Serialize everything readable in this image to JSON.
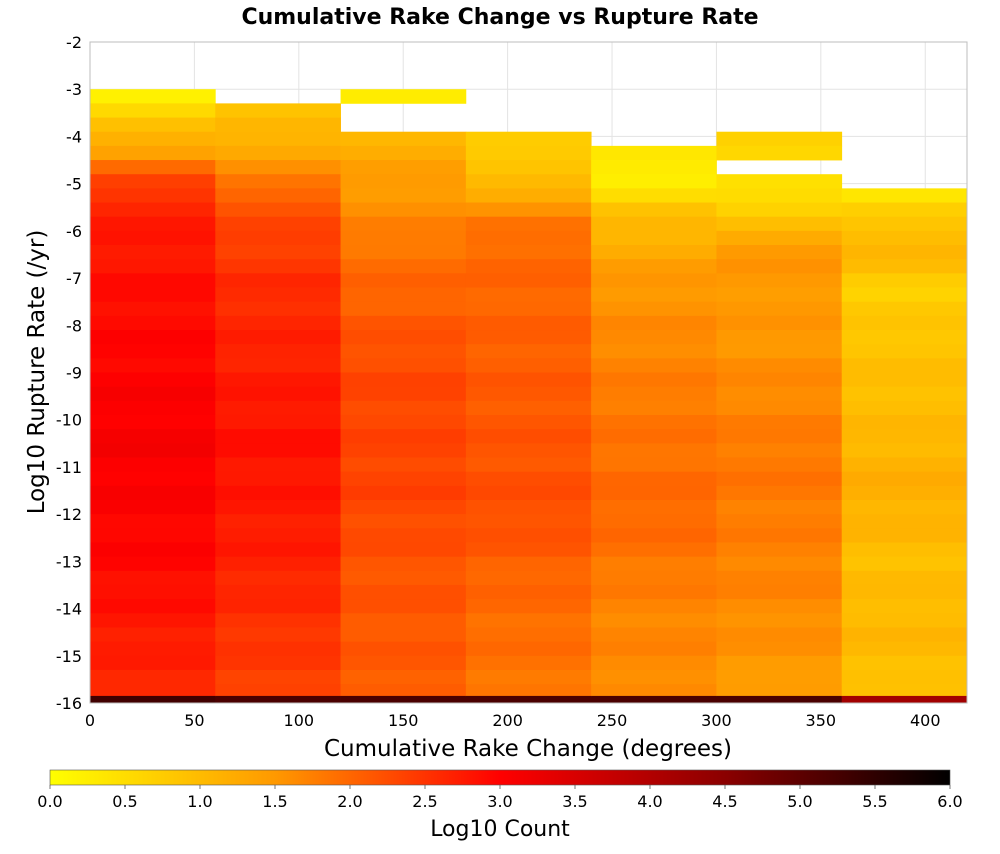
{
  "chart_data": {
    "type": "heatmap",
    "title": "Cumulative Rake Change vs Rupture Rate",
    "xlabel": "Cumulative Rake Change (degrees)",
    "ylabel": "Log10 Rupture Rate (/yr)",
    "xlim": [
      0,
      420
    ],
    "ylim": [
      -16,
      -2
    ],
    "x_ticks": [
      0,
      50,
      100,
      150,
      200,
      250,
      300,
      350,
      400
    ],
    "y_ticks": [
      -2,
      -3,
      -4,
      -5,
      -6,
      -7,
      -8,
      -9,
      -10,
      -11,
      -12,
      -13,
      -14,
      -15,
      -16
    ],
    "grid": true,
    "x_bin_width": 60,
    "y_bin_height": 0.3,
    "x_bin_starts": [
      0,
      60,
      120,
      180,
      240,
      300,
      360
    ],
    "column_ranges": [
      {
        "x_start": 0,
        "y_top": -3.0,
        "y_bottom": -16.0
      },
      {
        "x_start": 60,
        "y_top": -3.3,
        "y_bottom": -16.0
      },
      {
        "x_start": 120,
        "y_top": -3.0,
        "y_bottom": -16.0,
        "empty_y_range": [
          -3.9,
          -3.3
        ]
      },
      {
        "x_start": 180,
        "y_top": -3.9,
        "y_bottom": -16.0
      },
      {
        "x_start": 240,
        "y_top": -4.2,
        "y_bottom": -16.0
      },
      {
        "x_start": 300,
        "y_top": -3.9,
        "y_bottom": -16.0,
        "empty_y_range": [
          -4.8,
          -4.5
        ]
      },
      {
        "x_start": 360,
        "y_top": -5.1,
        "y_bottom": -16.0
      }
    ],
    "column_value_profiles": [
      {
        "x_start": 0,
        "log10_count_at_y": [
          [
            -3.0,
            0.15
          ],
          [
            -3.6,
            0.7
          ],
          [
            -4.4,
            1.5
          ],
          [
            -4.8,
            2.2
          ],
          [
            -5.5,
            2.7
          ],
          [
            -7.5,
            2.9
          ],
          [
            -10.5,
            3.1
          ],
          [
            -13,
            2.95
          ],
          [
            -15.8,
            2.6
          ]
        ]
      },
      {
        "x_start": 60,
        "log10_count_at_y": [
          [
            -3.3,
            0.8
          ],
          [
            -4.0,
            1.1
          ],
          [
            -4.6,
            1.5
          ],
          [
            -5.4,
            2.2
          ],
          [
            -7.0,
            2.55
          ],
          [
            -10.5,
            2.85
          ],
          [
            -13,
            2.7
          ],
          [
            -15.8,
            2.35
          ]
        ]
      },
      {
        "x_start": 120,
        "log10_count_at_y": [
          [
            -3.0,
            0.2
          ],
          [
            -3.9,
            1.05
          ],
          [
            -4.6,
            1.35
          ],
          [
            -5.2,
            1.5
          ],
          [
            -6.5,
            1.9
          ],
          [
            -9.0,
            2.3
          ],
          [
            -11.5,
            2.35
          ],
          [
            -13,
            2.2
          ],
          [
            -15.8,
            2.1
          ]
        ]
      },
      {
        "x_start": 180,
        "log10_count_at_y": [
          [
            -3.9,
            0.85
          ],
          [
            -4.6,
            0.75
          ],
          [
            -5.4,
            1.4
          ],
          [
            -6.0,
            1.95
          ],
          [
            -9.0,
            2.1
          ],
          [
            -12.0,
            2.25
          ],
          [
            -13.5,
            2.0
          ],
          [
            -15.8,
            1.85
          ]
        ]
      },
      {
        "x_start": 240,
        "log10_count_at_y": [
          [
            -4.2,
            0.4
          ],
          [
            -4.8,
            0.15
          ],
          [
            -5.6,
            0.9
          ],
          [
            -7.0,
            1.5
          ],
          [
            -9.5,
            1.8
          ],
          [
            -12.0,
            2.0
          ],
          [
            -14.0,
            1.7
          ],
          [
            -15.8,
            1.65
          ]
        ]
      },
      {
        "x_start": 300,
        "log10_count_at_y": [
          [
            -3.9,
            0.85
          ],
          [
            -4.4,
            0.5
          ],
          [
            -4.8,
            0.5
          ],
          [
            -5.6,
            0.6
          ],
          [
            -6.3,
            1.5
          ],
          [
            -8.0,
            1.5
          ],
          [
            -11.0,
            1.85
          ],
          [
            -13.5,
            1.7
          ],
          [
            -15.8,
            1.45
          ]
        ]
      },
      {
        "x_start": 360,
        "log10_count_at_y": [
          [
            -5.1,
            0.25
          ],
          [
            -5.7,
            0.75
          ],
          [
            -6.3,
            1.15
          ],
          [
            -7.2,
            0.7
          ],
          [
            -8.5,
            0.9
          ],
          [
            -10.0,
            1.0
          ],
          [
            -11.5,
            1.2
          ],
          [
            -13.0,
            0.95
          ],
          [
            -14.5,
            1.05
          ],
          [
            -15.8,
            0.9
          ]
        ]
      }
    ],
    "bottom_row": {
      "y_range": [
        -16.0,
        -15.85
      ],
      "log10_count": [
        5.3,
        5.2,
        5.2,
        5.2,
        5.2,
        5.2,
        4.2
      ]
    },
    "colorbar": {
      "label": "Log10 Count",
      "range": [
        0.0,
        6.0
      ],
      "ticks": [
        "0.0",
        "0.5",
        "1.0",
        "1.5",
        "2.0",
        "2.5",
        "3.0",
        "3.5",
        "4.0",
        "4.5",
        "5.0",
        "5.5",
        "6.0"
      ],
      "colors": [
        "#ffff00",
        "#ff9900",
        "#ff0000",
        "#8b0000",
        "#000000"
      ]
    }
  }
}
